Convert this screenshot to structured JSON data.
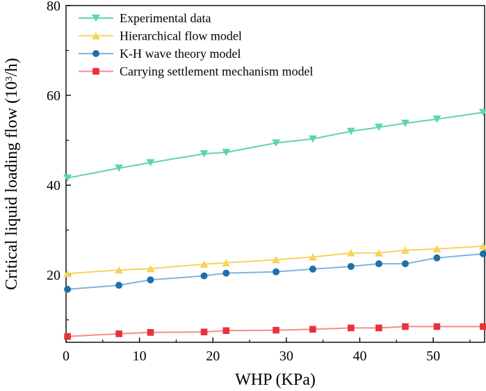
{
  "chart_data": {
    "type": "line",
    "title": "",
    "xlabel": "WHP (KPa)",
    "ylabel_main": "Critical liquid loading flow (10",
    "ylabel_sup": "3",
    "ylabel_tail": "/h)",
    "xlim": [
      0,
      57
    ],
    "ylim": [
      5,
      80
    ],
    "xticks": [
      0,
      10,
      20,
      30,
      40,
      50
    ],
    "yticks": [
      20,
      40,
      60,
      80
    ],
    "grid": false,
    "legend_position": "top-left",
    "x": [
      0.2,
      7.2,
      11.5,
      18.8,
      21.8,
      28.6,
      33.6,
      38.8,
      42.6,
      46.2,
      50.5,
      56.8
    ],
    "series": [
      {
        "name": "Experimental data",
        "marker": "triangle-down",
        "color": "#5fd6a4",
        "values": [
          41.6,
          43.8,
          45.0,
          47.0,
          47.3,
          49.4,
          50.3,
          52.0,
          52.9,
          53.8,
          54.7,
          56.2
        ]
      },
      {
        "name": "Hierarchical flow model",
        "marker": "triangle-up",
        "color": "#f7d35c",
        "values": [
          20.3,
          21.1,
          21.4,
          22.4,
          22.7,
          23.4,
          24.0,
          24.9,
          24.9,
          25.5,
          25.8,
          26.4
        ]
      },
      {
        "name": "K-H wave theory model",
        "marker": "circle",
        "color": "#1f6fa8",
        "line_color": "#7fb2dc",
        "values": [
          16.8,
          17.7,
          18.9,
          19.8,
          20.4,
          20.7,
          21.3,
          21.9,
          22.5,
          22.5,
          23.8,
          24.7
        ]
      },
      {
        "name": "Carrying settlement mechanism model",
        "marker": "square",
        "color": "#e8323a",
        "line_color": "#f58c8c",
        "values": [
          6.3,
          6.9,
          7.2,
          7.3,
          7.6,
          7.7,
          7.9,
          8.2,
          8.2,
          8.5,
          8.5,
          8.5
        ]
      }
    ]
  }
}
